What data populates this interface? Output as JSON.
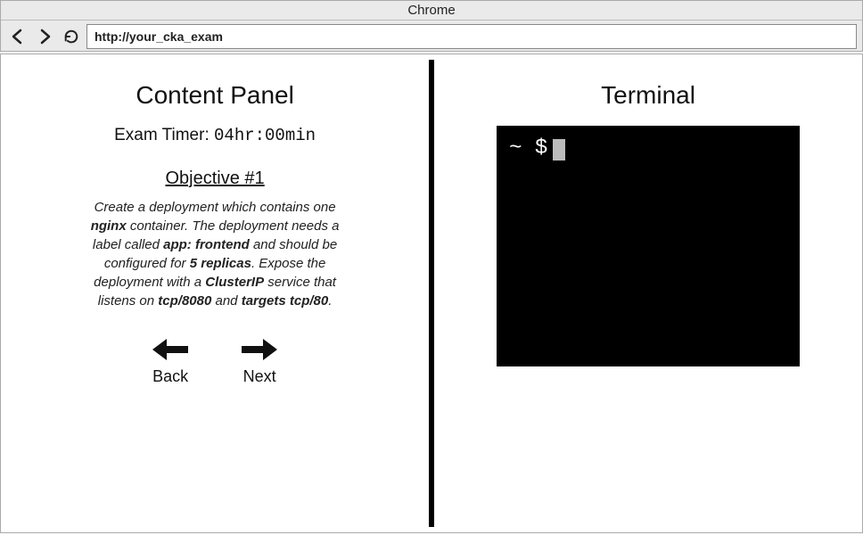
{
  "browser": {
    "title": "Chrome",
    "url": "http://your_cka_exam"
  },
  "content_panel": {
    "title": "Content Panel",
    "timer_label": "Exam Timer: ",
    "timer_value": "04hr:00min",
    "objective_title": "Objective #1",
    "objective_html": "Create a deployment which contains one <b>nginx</b> container. The deployment needs a label called <b>app: frontend</b> and should be configured for <b>5 replicas</b>. Expose the deployment with a <b>ClusterIP</b> service that listens on <b>tcp/8080</b> and <b>targets tcp/80</b>.",
    "back_label": "Back",
    "next_label": "Next"
  },
  "terminal": {
    "title": "Terminal",
    "prompt": "~ $"
  },
  "colors": {
    "chrome_bg": "#eaeaea",
    "border": "#aaaaaa",
    "text": "#111111",
    "terminal_bg": "#000000",
    "terminal_fg": "#ffffff",
    "terminal_cursor": "#bbbbbb",
    "divider": "#000000"
  }
}
